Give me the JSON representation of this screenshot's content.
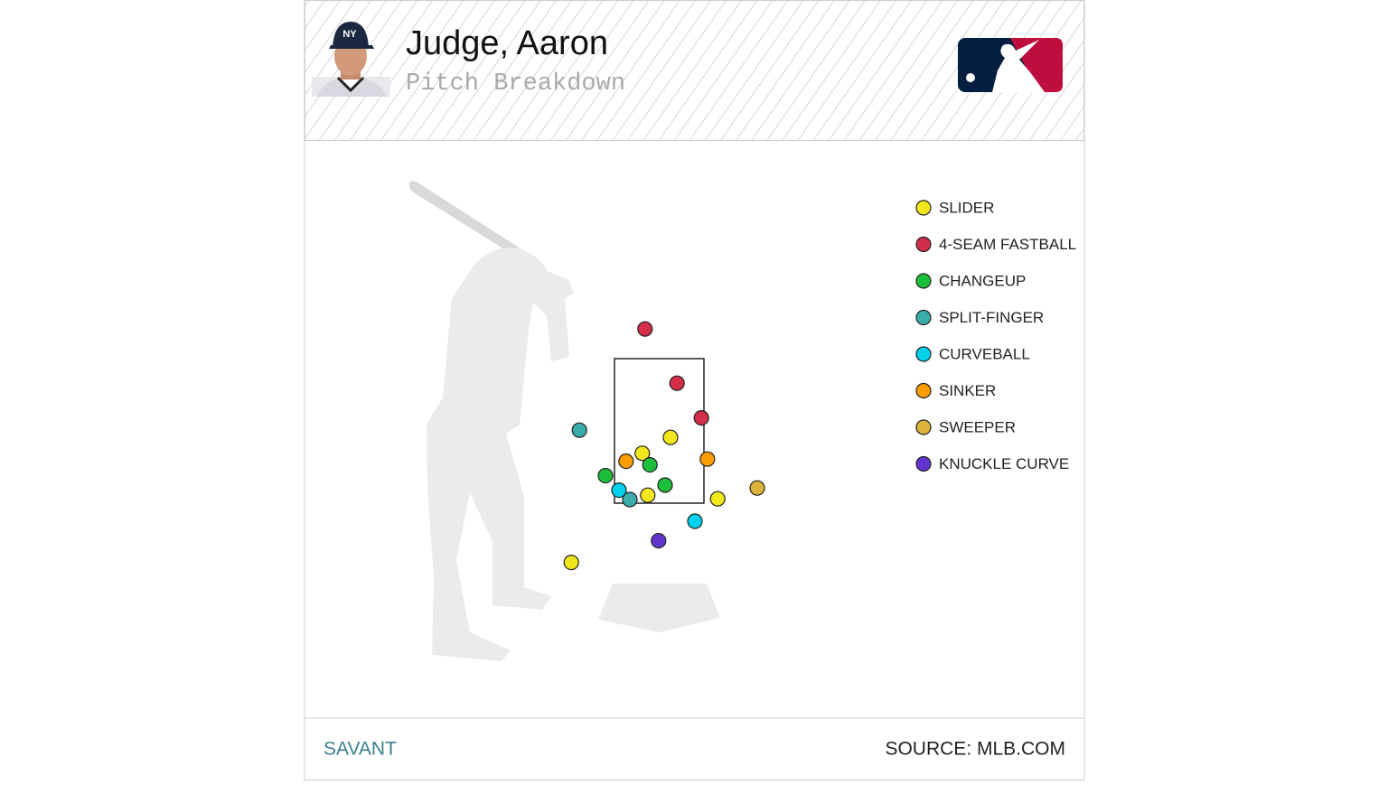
{
  "chart_data": {
    "type": "scatter",
    "title": "Judge, Aaron",
    "subtitle": "Pitch Breakdown",
    "footer_left": "SAVANT",
    "footer_right": "SOURCE: MLB.COM",
    "xlim": [
      -2,
      2
    ],
    "ylim": [
      0,
      4
    ],
    "series": [
      {
        "name": "SLIDER",
        "color": "#f2e61c",
        "x": [
          0.2,
          -0.32,
          -0.22,
          1.07,
          -1.63
        ],
        "y": [
          2.41,
          2.19,
          1.61,
          1.56,
          0.68
        ]
      },
      {
        "name": "4-SEAM FASTBALL",
        "color": "#d22d49",
        "x": [
          -0.27,
          0.32,
          0.77
        ],
        "y": [
          3.91,
          3.16,
          2.68
        ]
      },
      {
        "name": "CHANGEUP",
        "color": "#1dbe3a",
        "x": [
          -0.18,
          -1.0,
          0.1
        ],
        "y": [
          2.03,
          1.88,
          1.75
        ]
      },
      {
        "name": "SPLIT-FINGER",
        "color": "#3bacac",
        "x": [
          -1.48,
          -0.55
        ],
        "y": [
          2.51,
          1.55
        ]
      },
      {
        "name": "CURVEBALL",
        "color": "#00d1ed",
        "x": [
          -0.75,
          0.65
        ],
        "y": [
          1.68,
          1.25
        ]
      },
      {
        "name": "SINKER",
        "color": "#fe9d00",
        "x": [
          -0.62,
          0.88
        ],
        "y": [
          2.08,
          2.11
        ]
      },
      {
        "name": "SWEEPER",
        "color": "#ddb33a",
        "x": [
          1.8
        ],
        "y": [
          1.71
        ]
      },
      {
        "name": "KNUCKLE CURVE",
        "color": "#6236cd",
        "x": [
          -0.02
        ],
        "y": [
          0.98
        ]
      }
    ]
  }
}
